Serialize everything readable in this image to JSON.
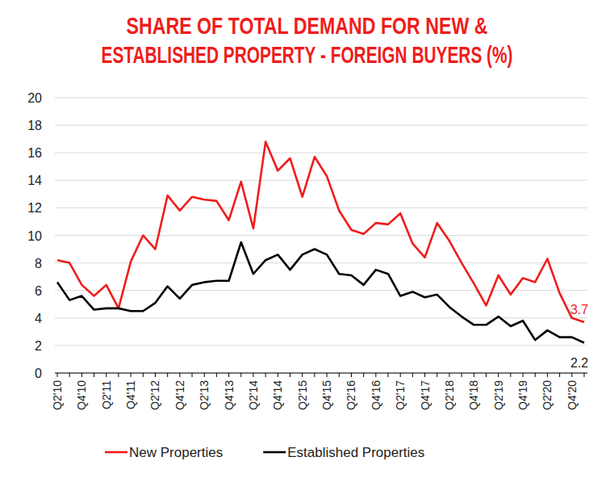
{
  "chart_data": {
    "type": "line",
    "title": "SHARE OF TOTAL DEMAND FOR NEW & ESTABLISHED PROPERTY - FOREIGN BUYERS (%)",
    "categories": [
      "Q2'10",
      null,
      "Q4'10",
      null,
      "Q2'11",
      null,
      "Q4'11",
      null,
      "Q2'12",
      null,
      "Q4'12",
      null,
      "Q2'13",
      null,
      "Q4'13",
      null,
      "Q2'14",
      null,
      "Q4'14",
      null,
      "Q2'15",
      null,
      "Q4'15",
      null,
      "Q2'16",
      null,
      "Q4'16",
      null,
      "Q2'17",
      null,
      "Q4'17",
      null,
      "Q2'18",
      null,
      "Q4'18",
      null,
      "Q2'19",
      null,
      "Q4'19",
      null,
      "Q2'20",
      null,
      "Q4'20",
      null
    ],
    "series": [
      {
        "name": "New Properties",
        "color": "#f01c1c",
        "values": [
          8.2,
          8.0,
          6.4,
          5.6,
          6.4,
          4.7,
          8.1,
          10.0,
          9.0,
          12.9,
          11.8,
          12.8,
          12.6,
          12.5,
          11.1,
          13.9,
          10.5,
          16.8,
          14.7,
          15.6,
          12.8,
          15.7,
          14.3,
          11.8,
          10.4,
          10.1,
          10.9,
          10.8,
          11.6,
          9.4,
          8.4,
          10.9,
          9.6,
          8.0,
          6.5,
          4.9,
          7.1,
          5.7,
          6.9,
          6.6,
          8.3,
          5.8,
          4.0,
          3.7
        ],
        "value_labels": [
          null,
          null,
          null,
          null,
          null,
          null,
          null,
          null,
          null,
          null,
          null,
          null,
          null,
          null,
          null,
          null,
          null,
          null,
          null,
          null,
          null,
          null,
          null,
          null,
          null,
          null,
          null,
          null,
          null,
          null,
          null,
          null,
          null,
          null,
          null,
          null,
          null,
          null,
          null,
          null,
          null,
          null,
          null,
          "3.7"
        ]
      },
      {
        "name": "Established Properties",
        "color": "#000000",
        "values": [
          6.6,
          5.3,
          5.6,
          4.6,
          4.7,
          4.7,
          4.5,
          4.5,
          5.1,
          6.3,
          5.4,
          6.4,
          6.6,
          6.7,
          6.7,
          9.5,
          7.2,
          8.2,
          8.6,
          7.5,
          8.6,
          9.0,
          8.6,
          7.2,
          7.1,
          6.4,
          7.5,
          7.2,
          5.6,
          5.9,
          5.5,
          5.7,
          4.8,
          4.1,
          3.5,
          3.5,
          4.1,
          3.4,
          3.8,
          2.4,
          3.1,
          2.6,
          2.6,
          2.2
        ],
        "value_labels": [
          null,
          null,
          null,
          null,
          null,
          null,
          null,
          null,
          null,
          null,
          null,
          null,
          null,
          null,
          null,
          null,
          null,
          null,
          null,
          null,
          null,
          null,
          null,
          null,
          null,
          null,
          null,
          null,
          null,
          null,
          null,
          null,
          null,
          null,
          null,
          null,
          null,
          null,
          null,
          null,
          null,
          null,
          null,
          "2.2"
        ]
      }
    ],
    "ylim": [
      0,
      20
    ],
    "yticks": [
      0,
      2,
      4,
      6,
      8,
      10,
      12,
      14,
      16,
      18,
      20
    ],
    "grid": true,
    "legend": "bottom"
  }
}
